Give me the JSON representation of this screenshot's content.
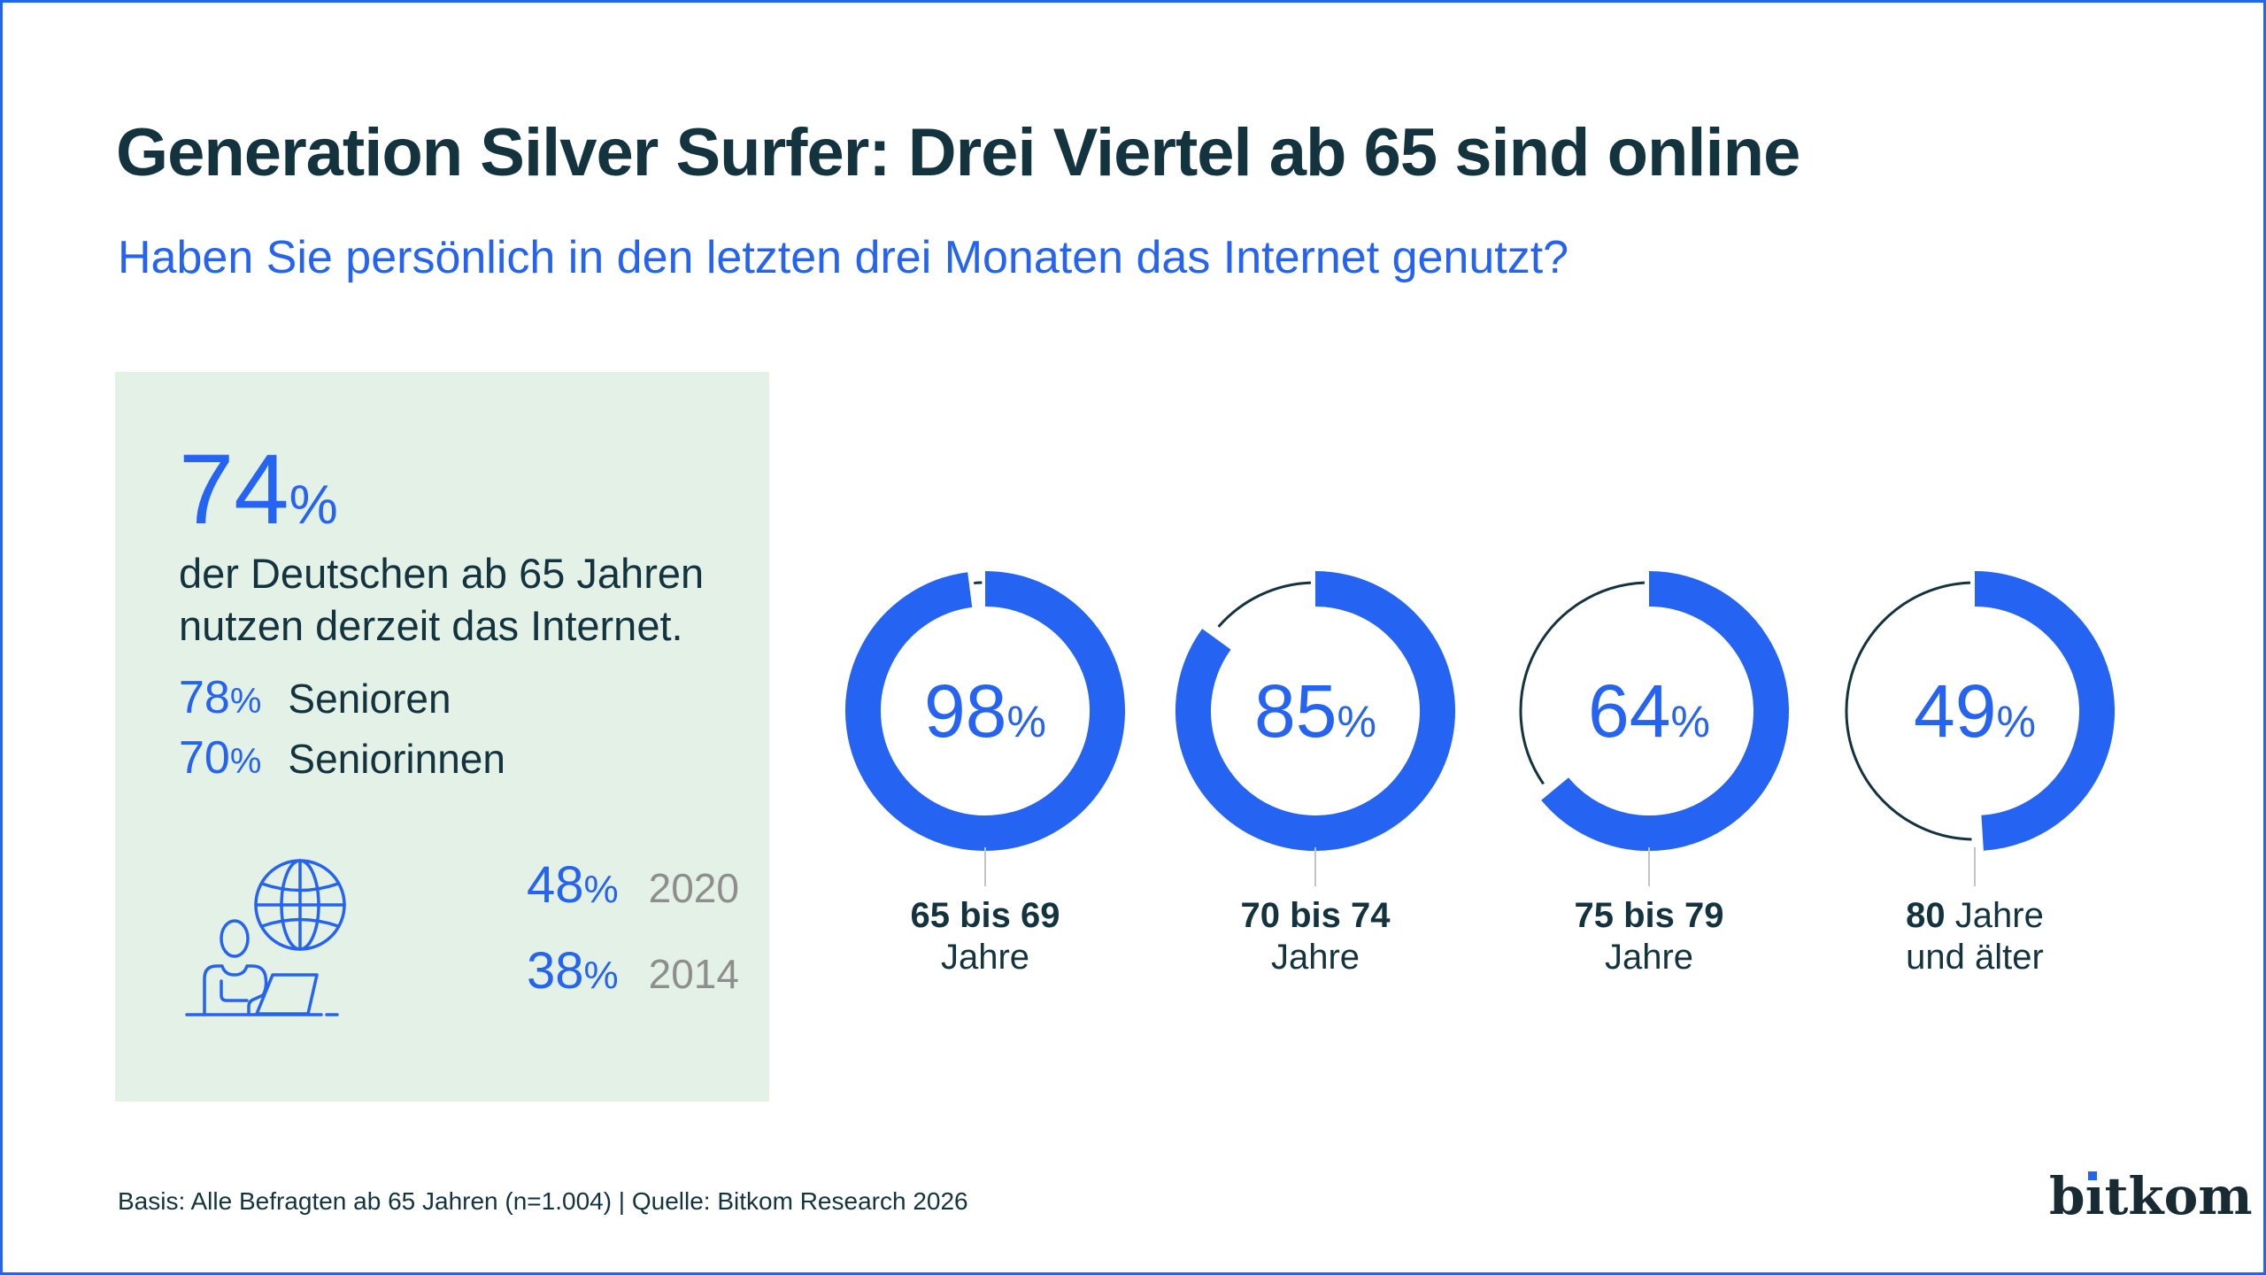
{
  "colors": {
    "accent_blue": "#2563F2",
    "dark_teal": "#13333E",
    "green_bg": "#E3F1E6",
    "year_gray": "#8E8E8E",
    "connector_gray": "#C4C4C4"
  },
  "header": {
    "title": "Generation Silver Surfer: Drei Viertel ab 65 sind online",
    "subtitle": "Haben Sie persönlich in den letzten drei Monaten das Internet genutzt?"
  },
  "summary_box": {
    "headline_value": "74",
    "headline_unit": "%",
    "description": [
      "der Deutschen ab 65 Jahren",
      "nutzen derzeit das Internet."
    ],
    "breakdown": [
      {
        "value": "78",
        "unit": "%",
        "label": "Senioren"
      },
      {
        "value": "70",
        "unit": "%",
        "label": "Seniorinnen"
      }
    ],
    "history": [
      {
        "value": "48",
        "unit": "%",
        "year": "2020"
      },
      {
        "value": "38",
        "unit": "%",
        "year": "2014"
      }
    ],
    "icon": "senior-laptop-globe-icon"
  },
  "chart_data": {
    "type": "donut",
    "unit": "%",
    "value_range": [
      0,
      100
    ],
    "items": [
      {
        "value": 98,
        "label_line1_bold": "65 bis 69",
        "label_line1_regular": "",
        "label_line2": "Jahre"
      },
      {
        "value": 85,
        "label_line1_bold": "70 bis 74",
        "label_line1_regular": "",
        "label_line2": "Jahre"
      },
      {
        "value": 64,
        "label_line1_bold": "75 bis 79",
        "label_line1_regular": "",
        "label_line2": "Jahre"
      },
      {
        "value": 49,
        "label_line1_bold": "80",
        "label_line1_regular": " Jahre",
        "label_line2": "und älter"
      }
    ]
  },
  "footer": {
    "source": "Basis: Alle Befragten ab 65 Jahren (n=1.004) | Quelle: Bitkom Research 2026"
  },
  "logo": {
    "text": "bitkom",
    "render": {
      "before_i": "b",
      "i": "ı",
      "after_i": "tkom"
    }
  }
}
